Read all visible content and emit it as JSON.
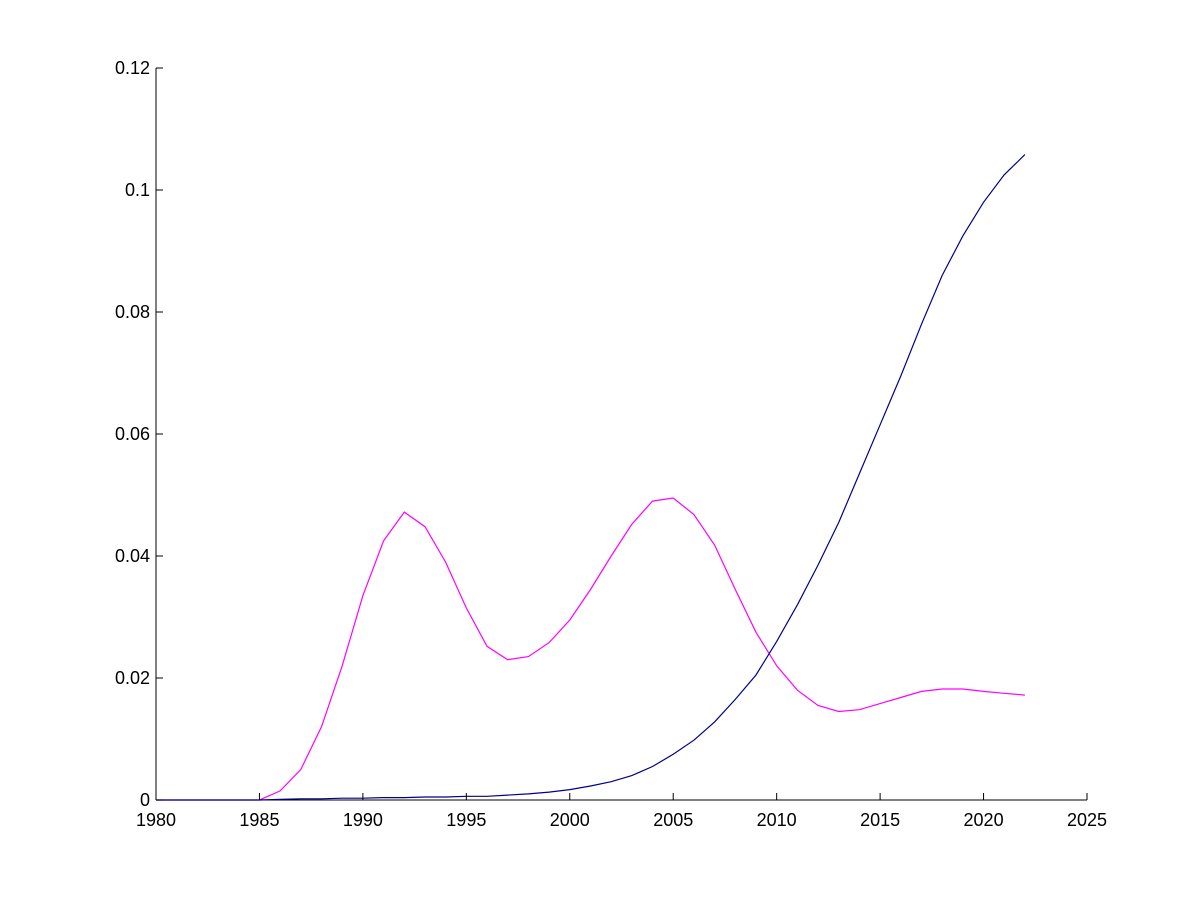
{
  "chart_data": {
    "type": "line",
    "title": "",
    "xlabel": "",
    "ylabel": "",
    "xlim": [
      1980,
      2025
    ],
    "ylim": [
      0,
      0.12
    ],
    "x_ticks": [
      1980,
      1985,
      1990,
      1995,
      2000,
      2005,
      2010,
      2015,
      2020,
      2025
    ],
    "y_ticks": [
      0,
      0.02,
      0.04,
      0.06,
      0.08,
      0.1,
      0.12
    ],
    "x_tick_labels": [
      "1980",
      "1985",
      "1990",
      "1995",
      "2000",
      "2005",
      "2010",
      "2015",
      "2020",
      "2025"
    ],
    "y_tick_labels": [
      "0",
      "0.02",
      "0.04",
      "0.06",
      "0.08",
      "0.1",
      "0.12"
    ],
    "grid": false,
    "x": [
      1980,
      1981,
      1982,
      1983,
      1984,
      1985,
      1986,
      1987,
      1988,
      1989,
      1990,
      1991,
      1992,
      1993,
      1994,
      1995,
      1996,
      1997,
      1998,
      1999,
      2000,
      2001,
      2002,
      2003,
      2004,
      2005,
      2006,
      2007,
      2008,
      2009,
      2010,
      2011,
      2012,
      2013,
      2014,
      2015,
      2016,
      2017,
      2018,
      2019,
      2020,
      2021,
      2022
    ],
    "series": [
      {
        "color": "#ff00ff",
        "values": [
          0,
          0,
          0,
          0,
          0,
          0,
          0.0015,
          0.005,
          0.012,
          0.022,
          0.0335,
          0.0425,
          0.0472,
          0.0448,
          0.039,
          0.0315,
          0.0252,
          0.023,
          0.0235,
          0.0258,
          0.0295,
          0.0345,
          0.04,
          0.0452,
          0.049,
          0.0495,
          0.0468,
          0.0418,
          0.0345,
          0.0275,
          0.022,
          0.018,
          0.0155,
          0.0145,
          0.0148,
          0.0158,
          0.0168,
          0.0178,
          0.0182,
          0.0182,
          0.0178,
          0.0175,
          0.0172
        ]
      },
      {
        "color": "#00008b",
        "values": [
          0,
          0,
          0,
          0,
          0,
          0,
          0.0001,
          0.0002,
          0.0002,
          0.0003,
          0.0003,
          0.0004,
          0.0004,
          0.0005,
          0.0005,
          0.0006,
          0.0006,
          0.0008,
          0.001,
          0.0013,
          0.0017,
          0.0023,
          0.003,
          0.004,
          0.0055,
          0.0075,
          0.0098,
          0.0128,
          0.0165,
          0.0205,
          0.026,
          0.032,
          0.0385,
          0.0455,
          0.0535,
          0.0615,
          0.0695,
          0.078,
          0.086,
          0.0925,
          0.098,
          0.1025,
          0.1058
        ]
      }
    ]
  }
}
